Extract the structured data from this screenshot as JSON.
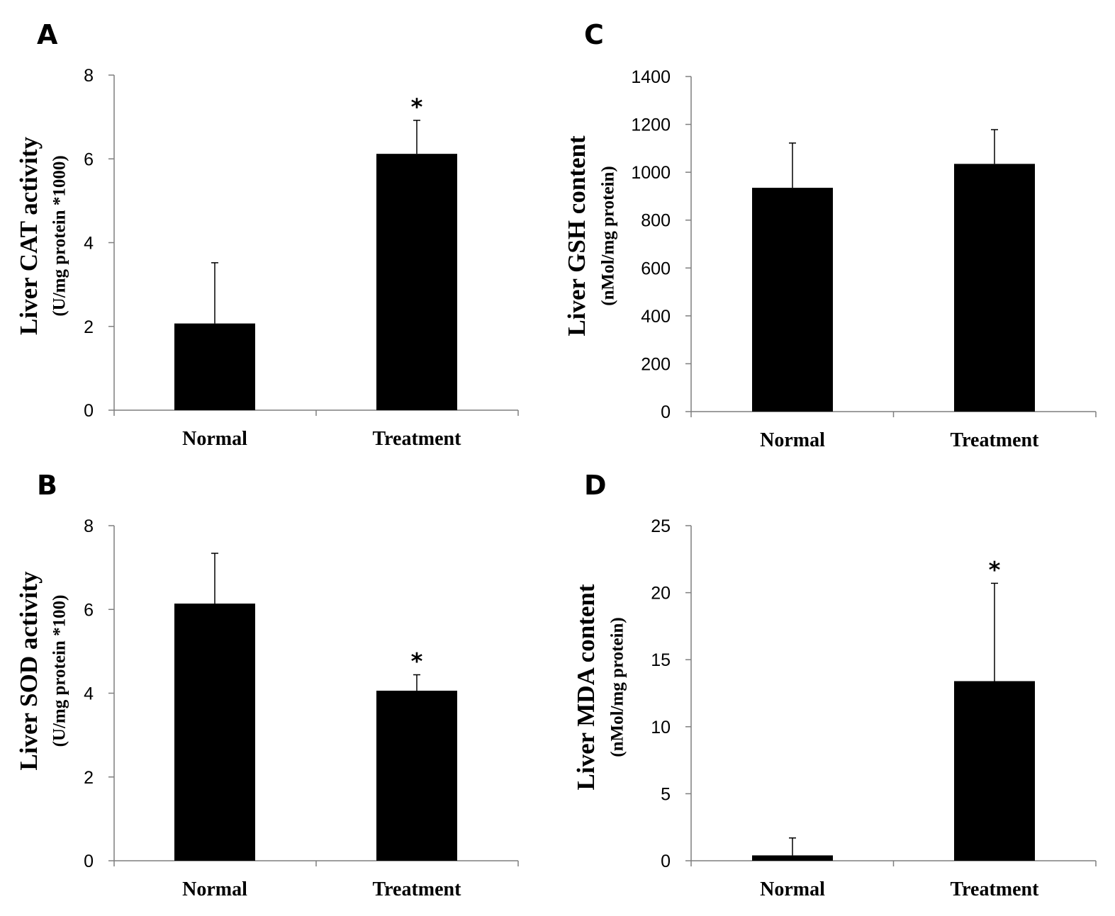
{
  "chart_data": [
    {
      "panel": "A",
      "type": "bar",
      "categories": [
        "Normal",
        "Treatment"
      ],
      "values": [
        2.07,
        6.12
      ],
      "errors": [
        1.45,
        0.8
      ],
      "significance": [
        "",
        "*"
      ],
      "ylabel": "Liver CAT activity",
      "ylabel_sub": "(U/mg protein *1000)",
      "ylim": [
        0,
        8
      ],
      "yticks": [
        0,
        2,
        4,
        6,
        8
      ],
      "bar_color": "#000000"
    },
    {
      "panel": "C",
      "type": "bar",
      "categories": [
        "Normal",
        "Treatment"
      ],
      "values": [
        935,
        1035
      ],
      "errors": [
        187,
        143
      ],
      "significance": [
        "",
        ""
      ],
      "ylabel": "Liver GSH content",
      "ylabel_sub": "(nMol/mg protein)",
      "ylim": [
        0,
        1400
      ],
      "yticks": [
        0,
        200,
        400,
        600,
        800,
        1000,
        1200,
        1400
      ],
      "bar_color": "#000000"
    },
    {
      "panel": "B",
      "type": "bar",
      "categories": [
        "Normal",
        "Treatment"
      ],
      "values": [
        6.14,
        4.06
      ],
      "errors": [
        1.2,
        0.38
      ],
      "significance": [
        "",
        "*"
      ],
      "ylabel": "Liver SOD activity",
      "ylabel_sub": "(U/mg protein *100)",
      "ylim": [
        0,
        8
      ],
      "yticks": [
        0,
        2,
        4,
        6,
        8
      ],
      "bar_color": "#000000"
    },
    {
      "panel": "D",
      "type": "bar",
      "categories": [
        "Normal",
        "Treatment"
      ],
      "values": [
        0.4,
        13.4
      ],
      "errors": [
        1.3,
        7.3
      ],
      "significance": [
        "",
        "*"
      ],
      "ylabel": "Liver MDA content",
      "ylabel_sub": "(nMol/mg protein)",
      "ylim": [
        0,
        25
      ],
      "yticks": [
        0,
        5,
        10,
        15,
        20,
        25
      ],
      "bar_color": "#000000"
    }
  ]
}
